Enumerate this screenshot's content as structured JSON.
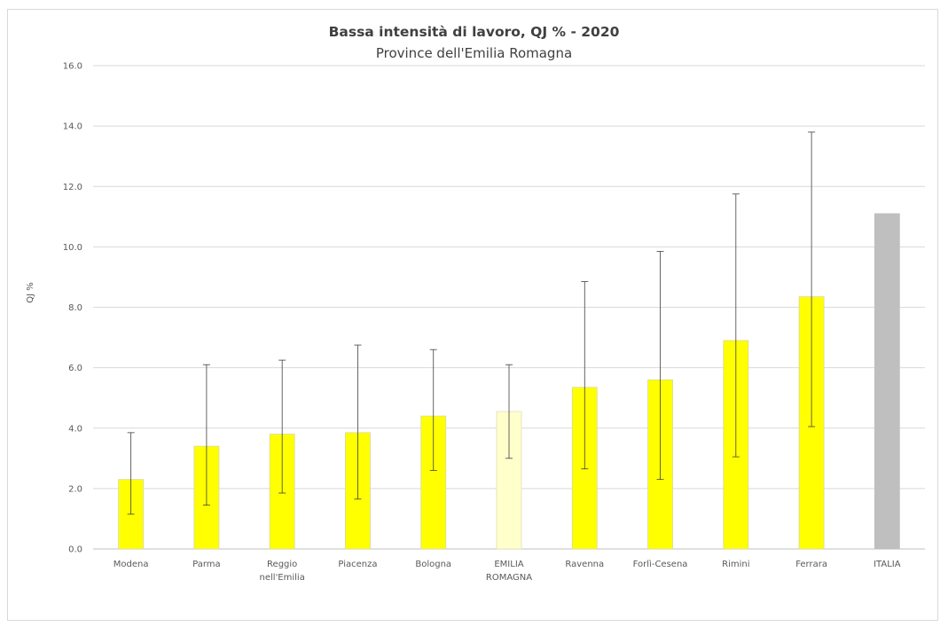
{
  "chart_data": {
    "type": "bar",
    "title": "Bassa intensità di lavoro, QJ %  - 2020",
    "subtitle": "Province dell'Emilia  Romagna",
    "ylabel": "QJ %",
    "xlabel": "",
    "ylim": [
      0,
      16
    ],
    "ytick_step": 2,
    "yticks": [
      "0.0",
      "2.0",
      "4.0",
      "6.0",
      "8.0",
      "10.0",
      "12.0",
      "14.0",
      "16.0"
    ],
    "grid": true,
    "legend": "none",
    "categories": [
      [
        "Modena"
      ],
      [
        "Parma"
      ],
      [
        "Reggio",
        "nell'Emilia"
      ],
      [
        "Piacenza"
      ],
      [
        "Bologna"
      ],
      [
        "EMILIA",
        "ROMAGNA"
      ],
      [
        "Ravenna"
      ],
      [
        "Forlì-Cesena"
      ],
      [
        "Rimini"
      ],
      [
        "Ferrara"
      ],
      [
        "ITALIA"
      ]
    ],
    "values": [
      2.3,
      3.4,
      3.8,
      3.85,
      4.4,
      4.55,
      5.35,
      5.6,
      6.9,
      8.35,
      11.1
    ],
    "error_low": [
      1.15,
      1.45,
      1.85,
      1.65,
      2.6,
      3.0,
      2.65,
      2.3,
      3.05,
      4.05,
      null
    ],
    "error_high": [
      3.85,
      6.1,
      6.25,
      6.75,
      6.6,
      6.1,
      8.85,
      9.85,
      11.75,
      13.8,
      null
    ],
    "colors": [
      "#ffff00",
      "#ffff00",
      "#ffff00",
      "#ffff00",
      "#ffff00",
      "#ffffcc",
      "#ffff00",
      "#ffff00",
      "#ffff00",
      "#ffff00",
      "#bfbfbf"
    ],
    "bar_edge_colors": [
      "#d9d9a0",
      "#d9d9a0",
      "#d9d9a0",
      "#d9d9a0",
      "#d9d9a0",
      "#e0e0b8",
      "#d9d9a0",
      "#d9d9a0",
      "#d9d9a0",
      "#d9d9a0",
      "#bfbfbf"
    ],
    "grid_color": "#d9d9d9",
    "error_bar_color": "#404040"
  }
}
